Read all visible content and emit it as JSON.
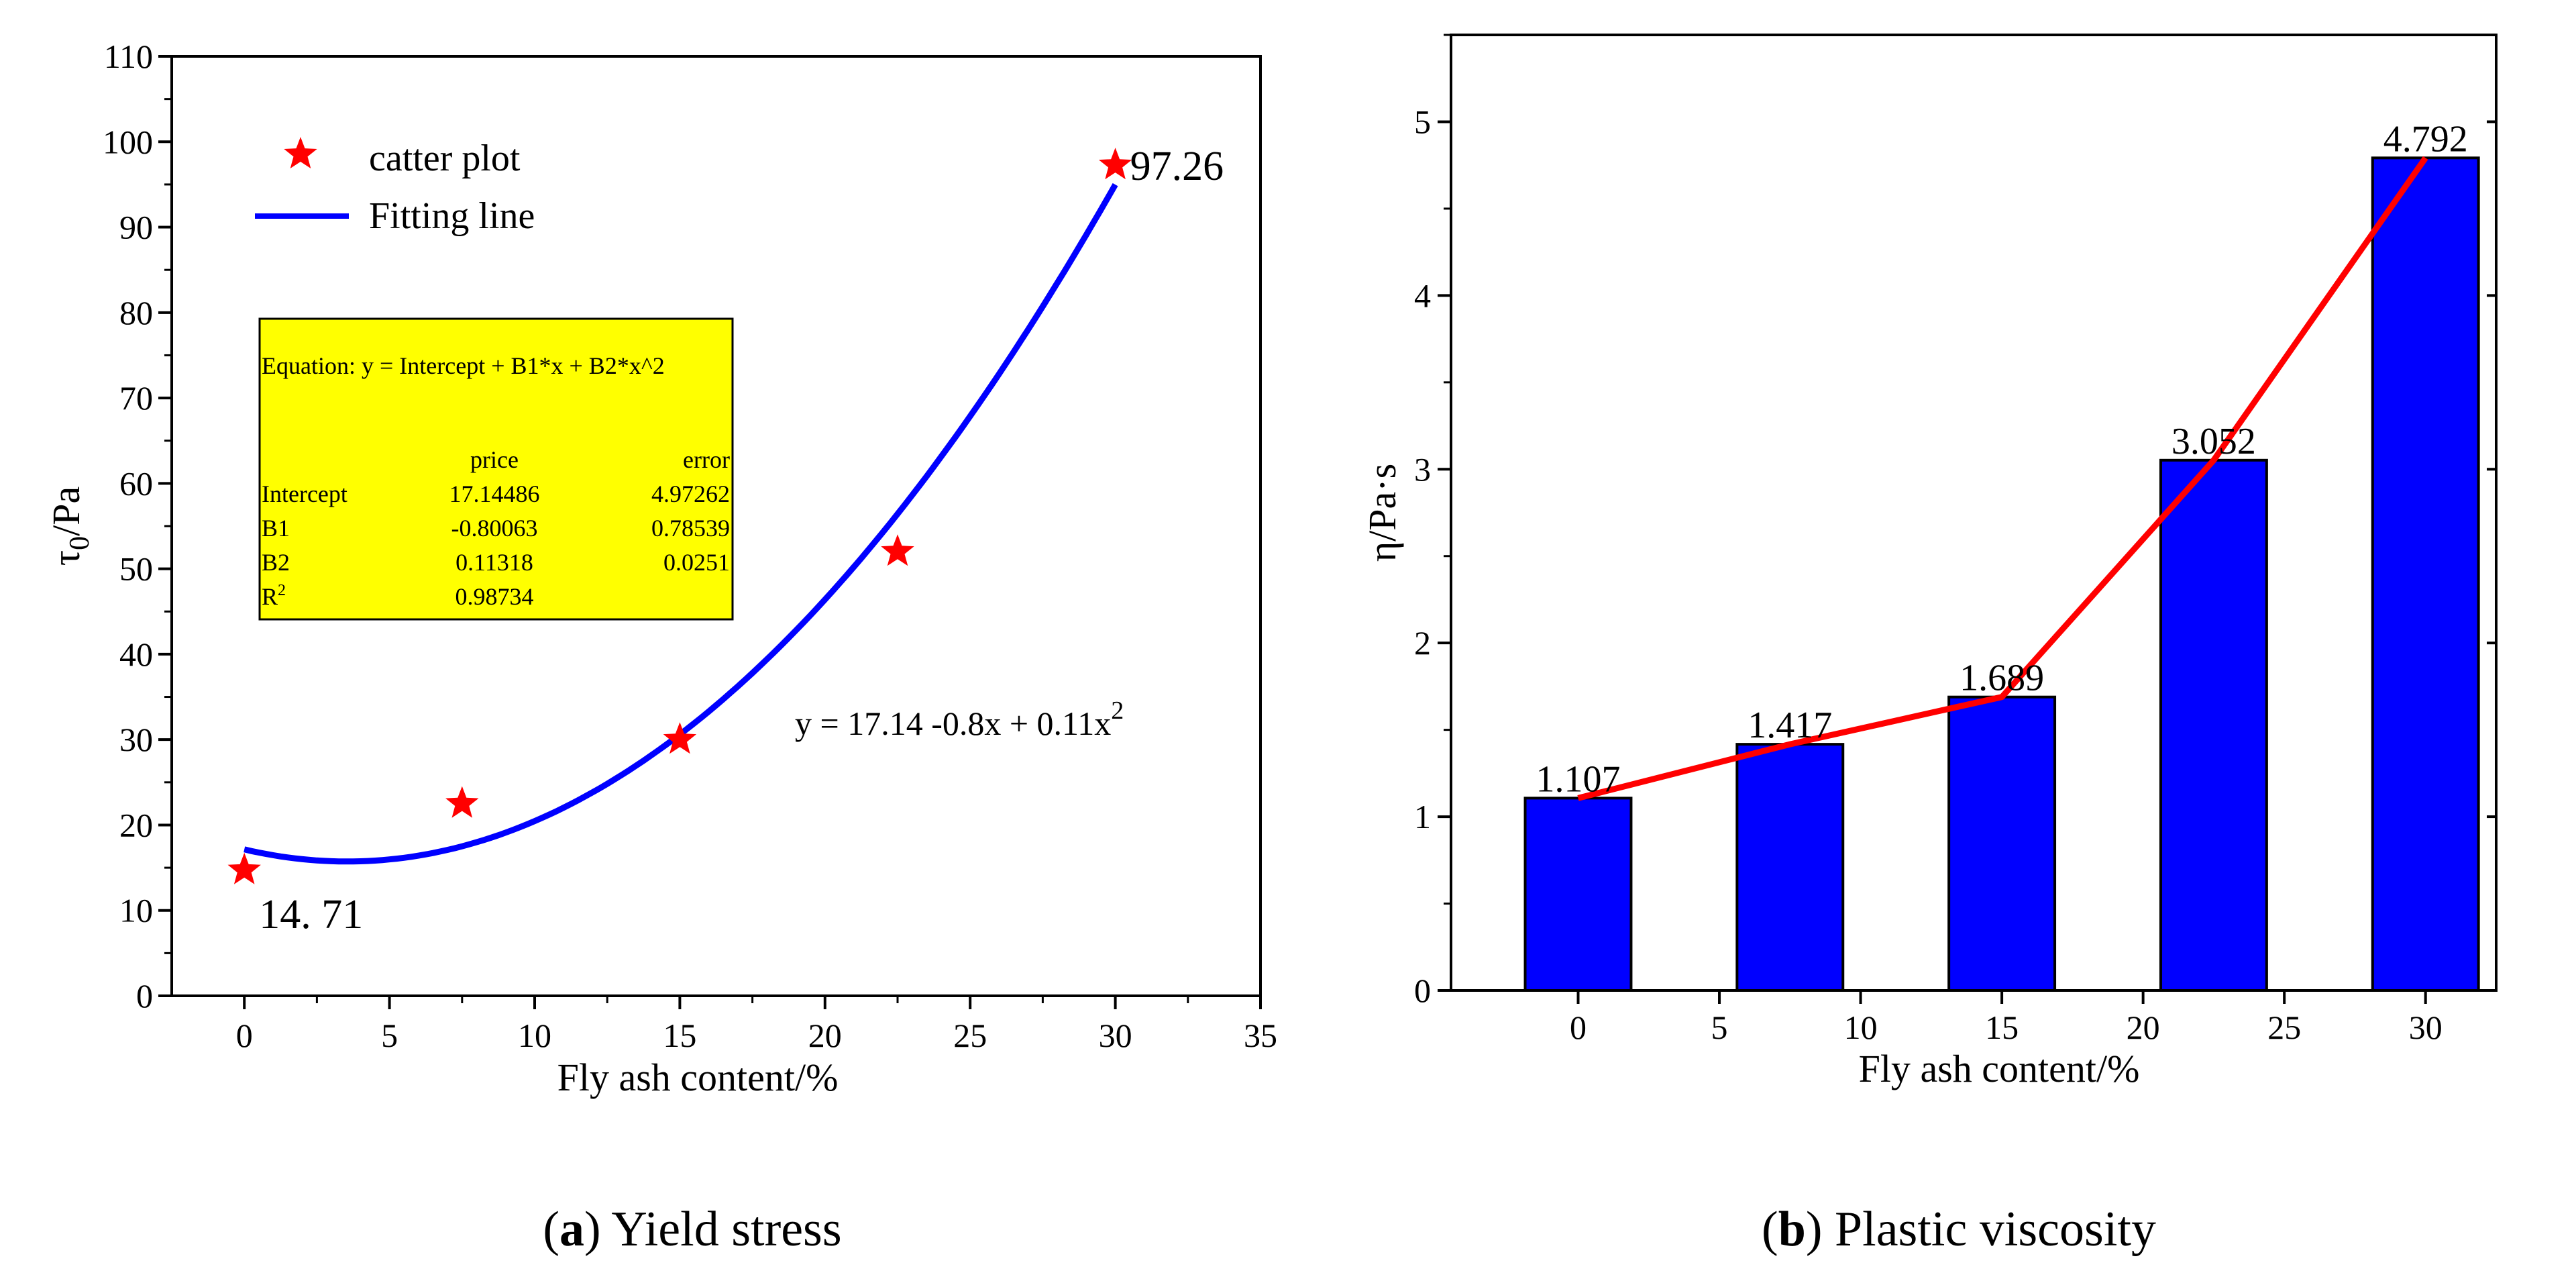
{
  "chart_data": [
    {
      "type": "scatter",
      "caption": {
        "letter": "a",
        "text": "Yield stress"
      },
      "xlabel": "Fly ash content/%",
      "ylabel": {
        "main": "τ",
        "sub": "0",
        "rest": "/Pa"
      },
      "xlim": [
        -2.5,
        35
      ],
      "ylim": [
        0,
        110
      ],
      "xticks": [
        0,
        5,
        10,
        15,
        20,
        25,
        30,
        35
      ],
      "yticks": [
        0,
        10,
        20,
        30,
        40,
        50,
        60,
        70,
        80,
        90,
        100,
        110
      ],
      "legend": {
        "scatter_label": "catter plot",
        "line_label": "Fitting line",
        "position": "top-left"
      },
      "series": [
        {
          "kind": "scatter",
          "x": [
            0,
            7.5,
            15,
            22.5,
            30
          ],
          "y": [
            14.71,
            22.5,
            30.0,
            52.0,
            97.26
          ],
          "color": "#ff0000"
        },
        {
          "kind": "fit",
          "equation_coeffs": [
            17.14486,
            -0.80063,
            0.11318
          ],
          "x_range": [
            0,
            30
          ],
          "color": "#0000ff"
        }
      ],
      "point_labels": [
        {
          "x": 0,
          "y": 14.71,
          "text": "14. 71"
        },
        {
          "x": 30,
          "y": 97.26,
          "text": "97.26"
        }
      ],
      "equation_annotation": {
        "text": "y = 17.14 -0.8x + 0.11x",
        "sup": "2"
      },
      "fit_table": {
        "equation": "Equation: y = Intercept + B1*x + B2*x^2",
        "headers": [
          "",
          "price",
          "error"
        ],
        "rows": [
          [
            "Intercept",
            "17.14486",
            "4.97262"
          ],
          [
            "B1",
            "-0.80063",
            "0.78539"
          ],
          [
            "B2",
            "0.11318",
            "0.0251"
          ]
        ],
        "r2_label": "R",
        "r2_sup": "2",
        "r2_value": "0.98734",
        "background": "#ffff00"
      }
    },
    {
      "type": "bar",
      "caption": {
        "letter": "b",
        "text": "Plastic viscosity"
      },
      "xlabel": "Fly ash content/%",
      "ylabel": "η/Pa·s",
      "xlim": [
        -4.5,
        32.5
      ],
      "ylim": [
        0,
        5.5
      ],
      "xticks": [
        0,
        5,
        10,
        15,
        20,
        25,
        30
      ],
      "yticks": [
        0,
        1,
        2,
        3,
        4,
        5
      ],
      "bar_width": 3.75,
      "x": [
        0,
        7.5,
        15,
        22.5,
        30
      ],
      "values": [
        1.107,
        1.417,
        1.689,
        3.052,
        4.792
      ],
      "value_labels": [
        "1.107",
        "1.417",
        "1.689",
        "3.052",
        "4.792"
      ],
      "bar_color": "#0000ff",
      "line_color": "#ff0000"
    }
  ]
}
